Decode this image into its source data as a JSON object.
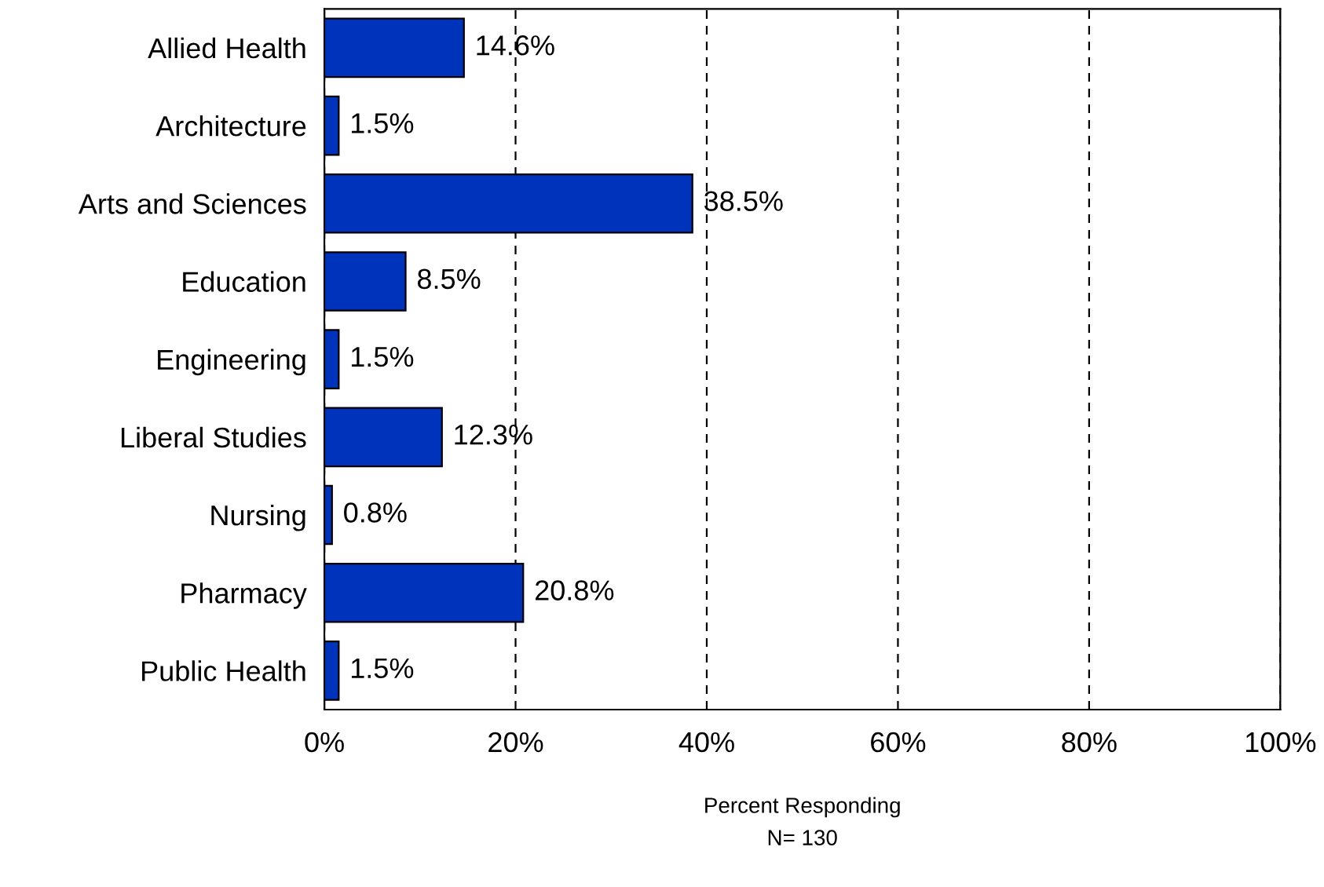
{
  "chart_data": {
    "type": "bar",
    "orientation": "horizontal",
    "categories": [
      "Allied Health",
      "Architecture",
      "Arts and Sciences",
      "Education",
      "Engineering",
      "Liberal Studies",
      "Nursing",
      "Pharmacy",
      "Public Health"
    ],
    "values": [
      14.6,
      1.5,
      38.5,
      8.5,
      1.5,
      12.3,
      0.8,
      20.8,
      1.5
    ],
    "value_labels": [
      "14.6%",
      "1.5%",
      "38.5%",
      "8.5%",
      "1.5%",
      "12.3%",
      "0.8%",
      "20.8%",
      "1.5%"
    ],
    "color": "#0033bb",
    "xlim": [
      0,
      100
    ],
    "xticks": [
      {
        "value": 0,
        "label": "0%"
      },
      {
        "value": 20,
        "label": "20%"
      },
      {
        "value": 40,
        "label": "40%"
      },
      {
        "value": 60,
        "label": "60%"
      },
      {
        "value": 80,
        "label": "80%"
      },
      {
        "value": 100,
        "label": "100%"
      }
    ],
    "grid": "x",
    "xlabel": "Percent Responding",
    "annotations": [
      "N= 130"
    ]
  }
}
